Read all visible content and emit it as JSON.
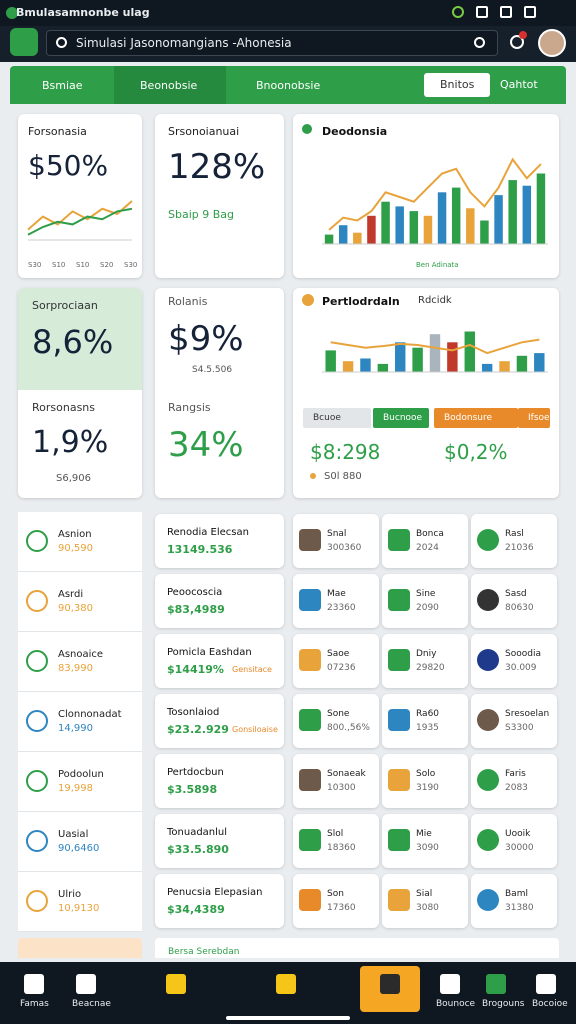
{
  "status_bar": {
    "title": "Bmulasamnonbe ulag"
  },
  "search": {
    "placeholder": "Simulasi Jasonomangians -Ahonesia"
  },
  "nav": {
    "tabs": [
      "Bsmiae",
      "Beonobsie",
      "Bnoonobsie"
    ],
    "button": "Bnitos",
    "dropdown": "Qahtot"
  },
  "card1": {
    "label": "Forsonasia",
    "value": "$50%",
    "chart": {
      "type": "line",
      "ylim": [
        0,
        100
      ],
      "x_labels": [
        "S30",
        "S10",
        "S10",
        "S20",
        "S30"
      ],
      "series": [
        {
          "color": "#e8a33a",
          "values": [
            20,
            45,
            30,
            55,
            40,
            60,
            50,
            75
          ]
        },
        {
          "color": "#2e9e48",
          "values": [
            10,
            25,
            35,
            30,
            45,
            40,
            55,
            60
          ]
        }
      ]
    }
  },
  "card2": {
    "label": "Srsonoianuai",
    "value": "128%",
    "note": "Sbaip 9 Bag"
  },
  "card3": {
    "title": "Deodonsia",
    "caption": "Ben Adinata",
    "chart": {
      "type": "bar_line",
      "ylim": [
        0,
        100
      ],
      "bars": {
        "values": [
          10,
          20,
          12,
          30,
          45,
          40,
          35,
          30,
          55,
          60,
          38,
          25,
          52,
          68,
          62,
          75
        ],
        "colors": [
          "#2e9e48",
          "#2e86c1",
          "#e8a33a",
          "#c0392b",
          "#2e9e48",
          "#2e86c1",
          "#2e9e48",
          "#e8a33a",
          "#2e86c1",
          "#2e9e48",
          "#e8a33a",
          "#2e9e48",
          "#2e86c1",
          "#2e9e48",
          "#2e86c1",
          "#2e9e48"
        ]
      },
      "line": {
        "color": "#e8a33a",
        "values": [
          15,
          28,
          25,
          35,
          55,
          50,
          45,
          60,
          75,
          80,
          55,
          40,
          60,
          90,
          70,
          85
        ]
      }
    }
  },
  "card4": {
    "top_label": "Sorprociaan",
    "top_value": "8,6%",
    "label": "Rorsonasns",
    "value": "1,9%",
    "note": "S6,906"
  },
  "card5": {
    "top_label": "Rolanis",
    "top_value": "$9%",
    "note": "S4.5.506",
    "label": "Rangsis",
    "value": "34%"
  },
  "card6": {
    "title": "Pertlodrdaln",
    "legend": "Rdcidk",
    "chart": {
      "type": "bar_line",
      "ylim": [
        0,
        100
      ],
      "bars": {
        "values": [
          40,
          20,
          25,
          15,
          55,
          45,
          70,
          55,
          75,
          15,
          20,
          30,
          35
        ],
        "colors": [
          "#2e9e48",
          "#e8a33a",
          "#2e86c1",
          "#2e9e48",
          "#2e86c1",
          "#2e9e48",
          "#aab4bd",
          "#c0392b",
          "#2e9e48",
          "#2e86c1",
          "#e8a33a",
          "#2e9e48",
          "#2e86c1"
        ]
      },
      "line": {
        "color": "#e8a33a",
        "values": [
          55,
          50,
          45,
          48,
          52,
          50,
          45,
          40,
          50,
          35,
          45,
          55,
          60
        ]
      }
    },
    "chips": [
      "Bcuoe",
      "Bucnooe",
      "Bodonsure",
      "Ifsoe"
    ],
    "chip_colors": [
      "#e3e6e9",
      "#2e9e48",
      "#e8892a",
      "#e8892a"
    ],
    "values": [
      "$8:298",
      "$0,2%"
    ],
    "note": "S0l 880"
  },
  "left_list": [
    {
      "name": "Asnion",
      "value": "90,590",
      "color": "#2e9e48"
    },
    {
      "name": "Asrdi",
      "value": "90,380",
      "color": "#e8a33a"
    },
    {
      "name": "Asnoaice",
      "value": "83,990",
      "color": "#2e9e48"
    },
    {
      "name": "Clonnonadat",
      "value": "14,990",
      "color": "#2e86c1"
    },
    {
      "name": "Podoolun",
      "value": "19,998",
      "color": "#2e9e48"
    },
    {
      "name": "Uasial",
      "value": "90,6460",
      "color": "#2e86c1"
    },
    {
      "name": "Ulrio",
      "value": "10,9130",
      "color": "#e8a33a"
    }
  ],
  "mid_list": [
    {
      "title": "Renodia Elecsan",
      "value": "13149.536"
    },
    {
      "title": "Peoocoscia",
      "value": "$83,4989"
    },
    {
      "title": "Pomicla Eashdan",
      "value": "$14419%",
      "tag": "Gensitace"
    },
    {
      "title": "Tosonlaiod",
      "value": "$23.2.929",
      "tag": "Gonsiloaise"
    },
    {
      "title": "Pertdocbun",
      "value": "$3.5898"
    },
    {
      "title": "Tonuadanlul",
      "value": "$33.5.890"
    },
    {
      "title": "Penucsia Elepasian",
      "value": "$34,4389"
    }
  ],
  "grid_rows": [
    [
      {
        "name": "Snal",
        "value": "300360",
        "color": "#6d5a4a"
      },
      {
        "name": "Bonca",
        "value": "2024",
        "color": "#2e9e48"
      },
      {
        "name": "Rasl",
        "value": "21036",
        "color": "#2e9e48"
      }
    ],
    [
      {
        "name": "Mae",
        "value": "23360",
        "color": "#2e86c1"
      },
      {
        "name": "Sine",
        "value": "2090",
        "color": "#2e9e48"
      },
      {
        "name": "Sasd",
        "value": "80630",
        "color": "#333333"
      }
    ],
    [
      {
        "name": "Saoe",
        "value": "07236",
        "color": "#e8a33a"
      },
      {
        "name": "Dniy",
        "value": "29820",
        "color": "#2e9e48"
      },
      {
        "name": "Sooodia",
        "value": "30.009",
        "color": "#1f3a8a"
      }
    ],
    [
      {
        "name": "Sone",
        "value": "800.,56%",
        "color": "#2e9e48"
      },
      {
        "name": "Ra60",
        "value": "1935",
        "color": "#2e86c1"
      },
      {
        "name": "Sresoelan",
        "value": "S3300",
        "color": "#6d5a4a"
      }
    ],
    [
      {
        "name": "Sonaeak",
        "value": "10300",
        "color": "#6d5a4a"
      },
      {
        "name": "Solo",
        "value": "3190",
        "color": "#e8a33a"
      },
      {
        "name": "Faris",
        "value": "2083",
        "color": "#2e9e48"
      }
    ],
    [
      {
        "name": "Slol",
        "value": "18360",
        "color": "#2e9e48"
      },
      {
        "name": "Mie",
        "value": "3090",
        "color": "#2e9e48"
      },
      {
        "name": "Uooik",
        "value": "30000",
        "color": "#2e9e48"
      }
    ],
    [
      {
        "name": "Son",
        "value": "17360",
        "color": "#e8892a"
      },
      {
        "name": "Sial",
        "value": "3080",
        "color": "#e8a33a"
      },
      {
        "name": "Baml",
        "value": "31380",
        "color": "#2e86c1"
      }
    ]
  ],
  "footer_peek": "Bersa Serebdan",
  "bottom_nav": [
    "Famas",
    "Beacnae",
    "Bounoce",
    "Brogouns",
    "Bocoioe"
  ]
}
